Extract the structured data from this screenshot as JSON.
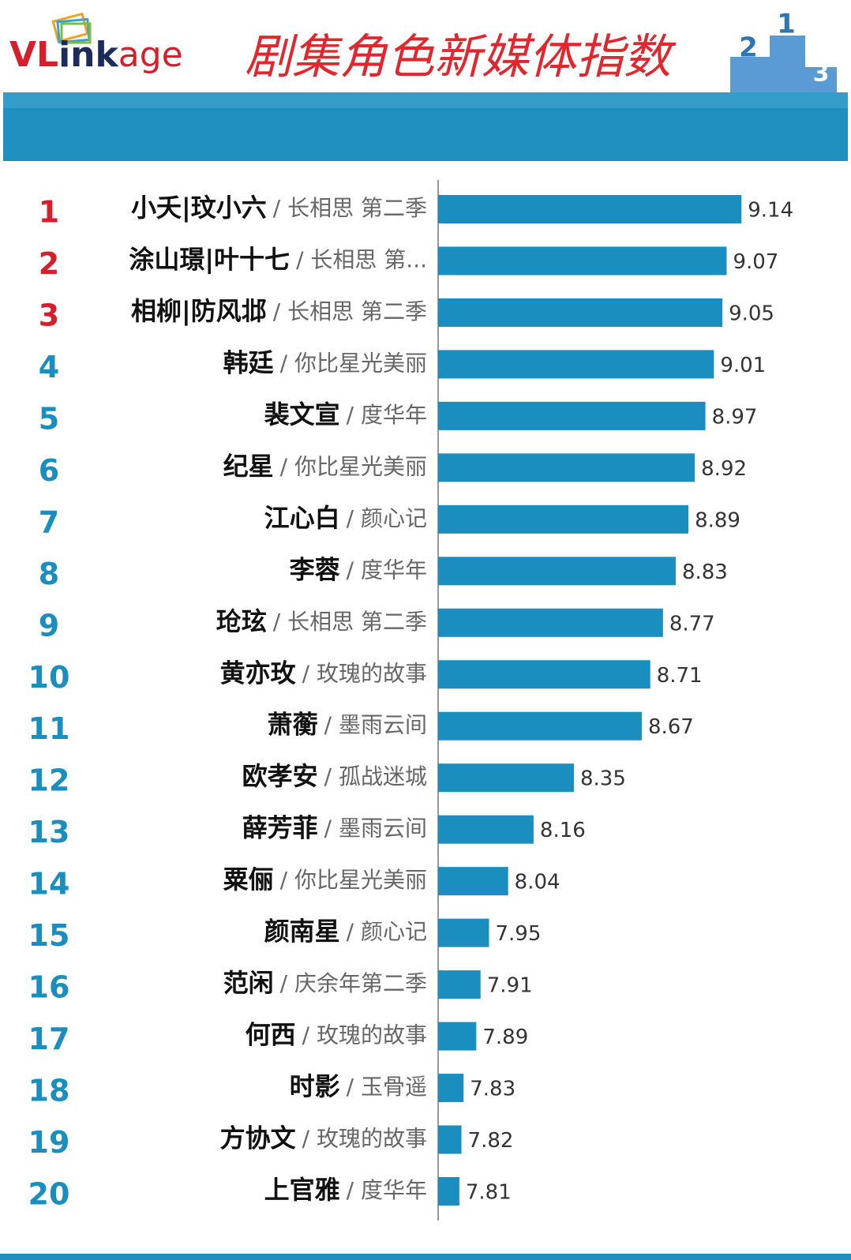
{
  "logo": {
    "parts": [
      "VL",
      "ink",
      "age"
    ],
    "podium": [
      "2",
      "1",
      "3"
    ]
  },
  "chart_data": {
    "type": "bar",
    "orientation": "horizontal",
    "title": "剧集角色新媒体指数",
    "ranks": [
      1,
      2,
      3,
      4,
      5,
      6,
      7,
      8,
      9,
      10,
      11,
      12,
      13,
      14,
      15,
      16,
      17,
      18,
      19,
      20
    ],
    "categories": [
      "小夭|玟小六",
      "涂山璟|叶十七",
      "相柳|防风邶",
      "韩廷",
      "裴文宣",
      "纪星",
      "江心白",
      "李蓉",
      "玱玹",
      "黄亦玫",
      "萧蘅",
      "欧孝安",
      "薛芳菲",
      "粟俪",
      "颜南星",
      "范闲",
      "何西",
      "时影",
      "方协文",
      "上官雅"
    ],
    "works": [
      "/ 长相思 第二季",
      "/ 长相思 第...",
      "/ 长相思 第二季",
      "/ 你比星光美丽",
      "/ 度华年",
      "/ 你比星光美丽",
      "/ 颜心记",
      "/ 度华年",
      "/ 长相思 第二季",
      "/ 玫瑰的故事",
      "/ 墨雨云间",
      "/ 孤战迷城",
      "/ 墨雨云间",
      "/ 你比星光美丽",
      "/ 颜心记",
      "/ 庆余年第二季",
      "/ 玫瑰的故事",
      "/ 玉骨遥",
      "/ 玫瑰的故事",
      "/ 度华年"
    ],
    "values": [
      9.14,
      9.07,
      9.05,
      9.01,
      8.97,
      8.92,
      8.89,
      8.83,
      8.77,
      8.71,
      8.67,
      8.35,
      8.16,
      8.04,
      7.95,
      7.91,
      7.89,
      7.83,
      7.82,
      7.81
    ],
    "xlim": [
      7.71,
      9.5
    ],
    "color": "#1a8fbf",
    "rank_color": "#1a8fbf",
    "top_rank_color": "#d51f2b",
    "top_ranks": 3
  }
}
